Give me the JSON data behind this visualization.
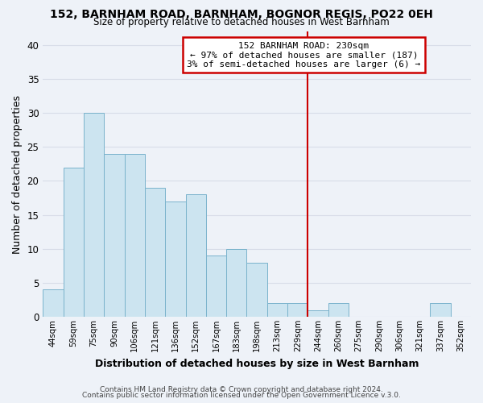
{
  "title": "152, BARNHAM ROAD, BARNHAM, BOGNOR REGIS, PO22 0EH",
  "subtitle": "Size of property relative to detached houses in West Barnham",
  "xlabel": "Distribution of detached houses by size in West Barnham",
  "ylabel": "Number of detached properties",
  "bar_labels": [
    "44sqm",
    "59sqm",
    "75sqm",
    "90sqm",
    "106sqm",
    "121sqm",
    "136sqm",
    "152sqm",
    "167sqm",
    "183sqm",
    "198sqm",
    "213sqm",
    "229sqm",
    "244sqm",
    "260sqm",
    "275sqm",
    "290sqm",
    "306sqm",
    "321sqm",
    "337sqm",
    "352sqm"
  ],
  "bar_values": [
    4,
    22,
    30,
    24,
    24,
    19,
    17,
    18,
    9,
    10,
    8,
    2,
    2,
    1,
    2,
    0,
    0,
    0,
    0,
    2,
    0
  ],
  "bar_color": "#cce4f0",
  "bar_edge_color": "#7ab3cc",
  "vline_x_index": 12,
  "vline_color": "#cc0000",
  "annotation_title": "152 BARNHAM ROAD: 230sqm",
  "annotation_line1": "← 97% of detached houses are smaller (187)",
  "annotation_line2": "3% of semi-detached houses are larger (6) →",
  "annotation_box_color": "#ffffff",
  "annotation_box_edge": "#cc0000",
  "ylim": [
    0,
    42
  ],
  "yticks": [
    0,
    5,
    10,
    15,
    20,
    25,
    30,
    35,
    40
  ],
  "footer1": "Contains HM Land Registry data © Crown copyright and database right 2024.",
  "footer2": "Contains public sector information licensed under the Open Government Licence v.3.0.",
  "bg_color": "#eef2f8",
  "grid_color": "#d8dde8"
}
